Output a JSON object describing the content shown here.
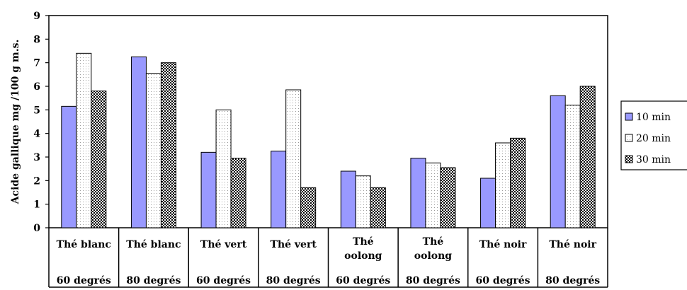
{
  "chart_data": {
    "type": "bar",
    "title": "",
    "ylabel": "Acide gallique mg /100 g m.s.",
    "xlabel": "",
    "ylim": [
      0,
      9
    ],
    "yticks": [
      "0",
      "1",
      "2",
      "3",
      "4",
      "5",
      "6",
      "7",
      "8",
      "9"
    ],
    "grid": false,
    "legend_position": "right",
    "categories": [
      {
        "line1": "Thé blanc",
        "line2": "",
        "temp": "60 degrés"
      },
      {
        "line1": "Thé blanc",
        "line2": "",
        "temp": "80 degrés"
      },
      {
        "line1": "Thé vert",
        "line2": "",
        "temp": "60 degrés"
      },
      {
        "line1": "Thé vert",
        "line2": "",
        "temp": "80 degrés"
      },
      {
        "line1": "Thé",
        "line2": "oolong",
        "temp": "60 degrés"
      },
      {
        "line1": "Thé",
        "line2": "oolong",
        "temp": "80 degrés"
      },
      {
        "line1": "Thé noir",
        "line2": "",
        "temp": "60 degrés"
      },
      {
        "line1": "Thé noir",
        "line2": "",
        "temp": "80 degrés"
      }
    ],
    "series": [
      {
        "name": "10 min",
        "color": "#9999ff",
        "pattern": "solid",
        "values": [
          5.15,
          7.25,
          3.2,
          3.25,
          2.4,
          2.95,
          2.1,
          5.6
        ]
      },
      {
        "name": "20 min",
        "color": "#ffffff",
        "pattern": "dots",
        "values": [
          7.4,
          6.55,
          5.0,
          5.85,
          2.2,
          2.75,
          3.6,
          5.2
        ]
      },
      {
        "name": "30 min",
        "color": "#000000",
        "pattern": "checker",
        "values": [
          5.8,
          7.0,
          2.95,
          1.7,
          1.7,
          2.55,
          3.8,
          6.0
        ]
      }
    ]
  }
}
